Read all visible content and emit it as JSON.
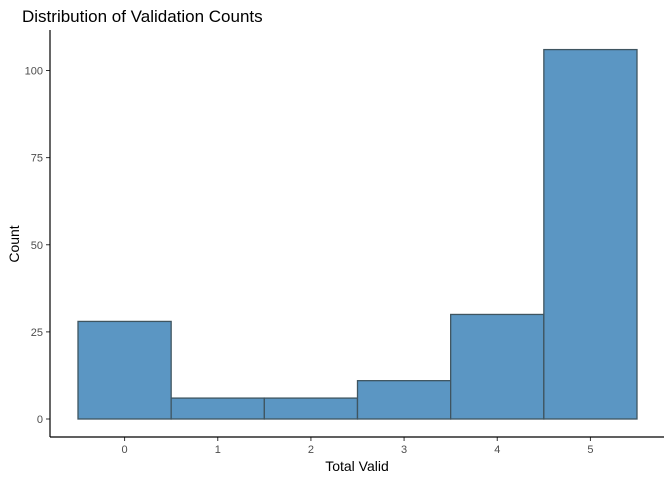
{
  "chart_data": {
    "type": "bar",
    "title": "Distribution of Validation Counts",
    "xlabel": "Total Valid",
    "ylabel": "Count",
    "categories": [
      "0",
      "1",
      "2",
      "3",
      "4",
      "5"
    ],
    "values": [
      28,
      6,
      6,
      11,
      30,
      106
    ],
    "xlim": [
      -0.5,
      5.5
    ],
    "ylim": [
      0,
      110
    ],
    "x_ticks": [
      "0",
      "1",
      "2",
      "3",
      "4",
      "5"
    ],
    "y_ticks": [
      0,
      25,
      50,
      75,
      100
    ],
    "grid": false,
    "bar_fill": "#5b96c3",
    "bar_stroke": "#3f5560"
  }
}
